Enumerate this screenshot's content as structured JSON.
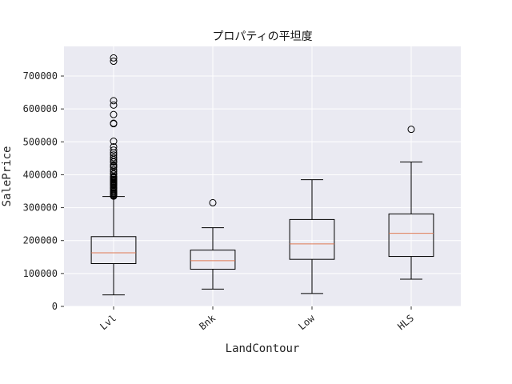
{
  "chart_data": {
    "type": "box",
    "title": "プロパティの平坦度",
    "xlabel": "LandContour",
    "ylabel": "SalePrice",
    "ylim": [
      0,
      790000
    ],
    "yticks": [
      0,
      100000,
      200000,
      300000,
      400000,
      500000,
      600000,
      700000
    ],
    "categories": [
      "Lvl",
      "Bnk",
      "Low",
      "HLS"
    ],
    "grid": true,
    "colors": {
      "background": "#eaeaf2",
      "grid": "#ffffff",
      "box": "#000000",
      "median": "#e07b54"
    },
    "boxes": [
      {
        "name": "Lvl",
        "whisker_low": 34900,
        "q1": 130000,
        "median": 163000,
        "q3": 212000,
        "whisker_high": 334000,
        "outliers": [
          755000,
          745000,
          625000,
          611657,
          582933,
          556581,
          555000,
          501837,
          485000,
          475000,
          466500,
          460000,
          451950,
          446261,
          440000,
          438780,
          430000,
          426000,
          423000,
          415298,
          410000,
          402861,
          402000,
          395192,
          392500,
          390000,
          386250,
          385000,
          383970,
          381000,
          380000,
          377500,
          375000,
          372500,
          370878,
          369900,
          367294,
          361919,
          360000,
          359100,
          354000,
          350000,
          348000,
          345000,
          342643,
          340000,
          337500,
          335000
        ]
      },
      {
        "name": "Bnk",
        "whisker_low": 52500,
        "q1": 113000,
        "median": 139000,
        "q3": 171000,
        "whisker_high": 239000,
        "outliers": [
          315000
        ]
      },
      {
        "name": "Low",
        "whisker_low": 39300,
        "q1": 143000,
        "median": 190000,
        "q3": 264000,
        "whisker_high": 385000,
        "outliers": []
      },
      {
        "name": "HLS",
        "whisker_low": 82500,
        "q1": 151750,
        "median": 222250,
        "q3": 281000,
        "whisker_high": 438780,
        "outliers": [
          538000
        ]
      }
    ]
  }
}
